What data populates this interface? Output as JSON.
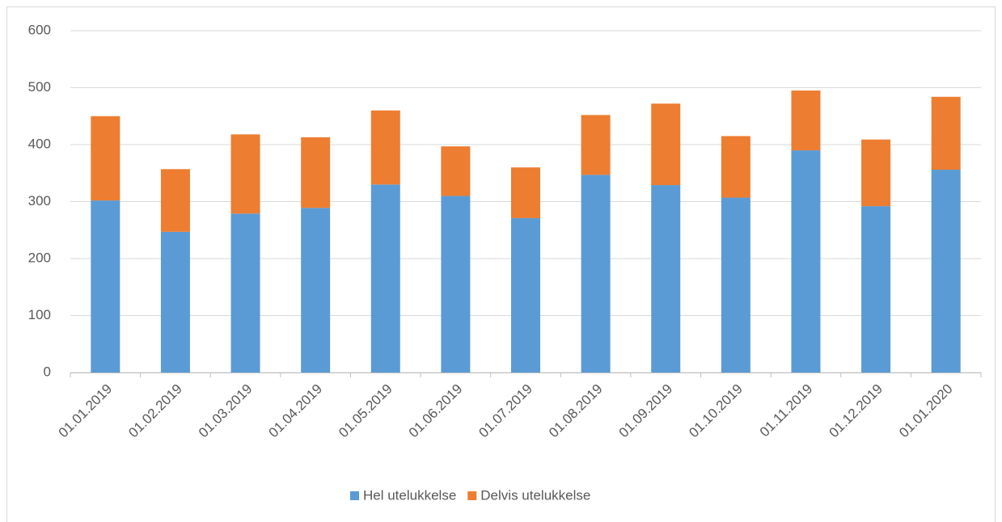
{
  "chart_data": {
    "type": "stacked_bar",
    "categories": [
      "01.01.2019",
      "01.02.2019",
      "01.03.2019",
      "01.04.2019",
      "01.05.2019",
      "01.06.2019",
      "01.07.2019",
      "01.08.2019",
      "01.09.2019",
      "01.10.2019",
      "01.11.2019",
      "01.12.2019",
      "01.01.2020"
    ],
    "series": [
      {
        "name": "Hel utelukkelse",
        "color": "#5b9bd5",
        "values": [
          302,
          247,
          279,
          289,
          330,
          310,
          271,
          347,
          329,
          307,
          390,
          292,
          356
        ]
      },
      {
        "name": "Delvis utelukkelse",
        "color": "#ed7d31",
        "values": [
          148,
          110,
          139,
          124,
          130,
          87,
          89,
          105,
          143,
          108,
          105,
          117,
          128
        ]
      }
    ],
    "ylim": [
      0,
      600
    ],
    "yticks": [
      0,
      100,
      200,
      300,
      400,
      500,
      600
    ],
    "grid": true,
    "legend": "bottom"
  }
}
